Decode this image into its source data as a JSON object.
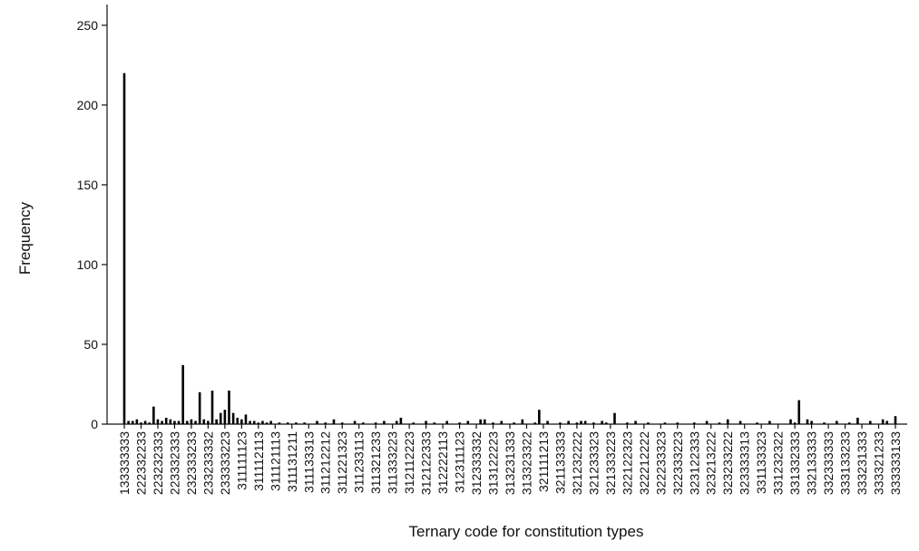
{
  "chart_data": {
    "type": "bar",
    "x_label": "Ternary code for constitution types",
    "y_label": "Frequency",
    "color": "#000000",
    "ylim": [
      0,
      263
    ],
    "yticks": [
      0,
      50,
      100,
      150,
      200,
      250
    ],
    "categories": [
      "133333333",
      null,
      null,
      null,
      "222332233",
      null,
      null,
      null,
      "223232333",
      null,
      null,
      null,
      "223332333",
      null,
      null,
      null,
      "232333233",
      null,
      null,
      null,
      "233233332",
      null,
      null,
      null,
      "233333223",
      null,
      null,
      null,
      "311111123",
      null,
      null,
      null,
      "311112113",
      null,
      null,
      null,
      "311121113",
      null,
      null,
      null,
      "311131211",
      null,
      null,
      null,
      "311133313",
      null,
      null,
      null,
      "311212212",
      null,
      null,
      null,
      "311221323",
      null,
      null,
      null,
      "311233113",
      null,
      null,
      null,
      "311321233",
      null,
      null,
      null,
      "311333223",
      null,
      null,
      null,
      "312112223",
      null,
      null,
      null,
      "312122333",
      null,
      null,
      null,
      "312222113",
      null,
      null,
      null,
      "312311123",
      null,
      null,
      null,
      "312333332",
      null,
      null,
      null,
      "313122223",
      null,
      null,
      null,
      "313231333",
      null,
      null,
      null,
      "313323322",
      null,
      null,
      null,
      "321111213",
      null,
      null,
      null,
      "321133333",
      null,
      null,
      null,
      "321232222",
      null,
      null,
      null,
      "321233323",
      null,
      null,
      null,
      "321333223",
      null,
      null,
      null,
      "322122323",
      null,
      null,
      null,
      "322212222",
      null,
      null,
      null,
      "322233323",
      null,
      null,
      null,
      "322333223",
      null,
      null,
      null,
      "323122333",
      null,
      null,
      null,
      "323213222",
      null,
      null,
      null,
      "323233222",
      null,
      null,
      null,
      "323333313",
      null,
      null,
      null,
      "331133323",
      null,
      null,
      null,
      "331232322",
      null,
      null,
      null,
      "331332333",
      null,
      null,
      null,
      "332133333",
      null,
      null,
      null,
      "332333333",
      null,
      null,
      null,
      "333133233",
      null,
      null,
      null,
      "333231333",
      null,
      null,
      null,
      "333321233",
      null,
      null,
      null,
      "333333133"
    ],
    "values": [
      220,
      2,
      2,
      3,
      1,
      2,
      1,
      11,
      3,
      2,
      4,
      3,
      2,
      2,
      37,
      2,
      3,
      2,
      20,
      3,
      2,
      21,
      3,
      7,
      9,
      21,
      7,
      4,
      3,
      6,
      2,
      2,
      1,
      2,
      1,
      2,
      0,
      1,
      0,
      1,
      0,
      1,
      0,
      1,
      0,
      0,
      2,
      0,
      1,
      0,
      3,
      0,
      1,
      0,
      0,
      2,
      0,
      1,
      0,
      0,
      1,
      0,
      2,
      0,
      0,
      2,
      4,
      0,
      0,
      1,
      0,
      0,
      2,
      0,
      1,
      0,
      0,
      2,
      0,
      0,
      1,
      0,
      2,
      0,
      0,
      3,
      3,
      0,
      1,
      0,
      2,
      0,
      0,
      1,
      0,
      3,
      0,
      0,
      1,
      9,
      0,
      2,
      0,
      0,
      1,
      0,
      2,
      0,
      1,
      2,
      2,
      0,
      1,
      0,
      2,
      1,
      0,
      7,
      0,
      0,
      1,
      0,
      2,
      0,
      0,
      1,
      0,
      0,
      0,
      1,
      0,
      0,
      1,
      0,
      0,
      0,
      1,
      0,
      0,
      2,
      0,
      0,
      1,
      0,
      3,
      0,
      0,
      2,
      0,
      0,
      0,
      1,
      0,
      0,
      2,
      0,
      0,
      0,
      0,
      3,
      1,
      15,
      0,
      3,
      2,
      0,
      0,
      1,
      0,
      0,
      2,
      0,
      0,
      1,
      0,
      4,
      0,
      0,
      2,
      0,
      0,
      3,
      2,
      0,
      5
    ]
  }
}
